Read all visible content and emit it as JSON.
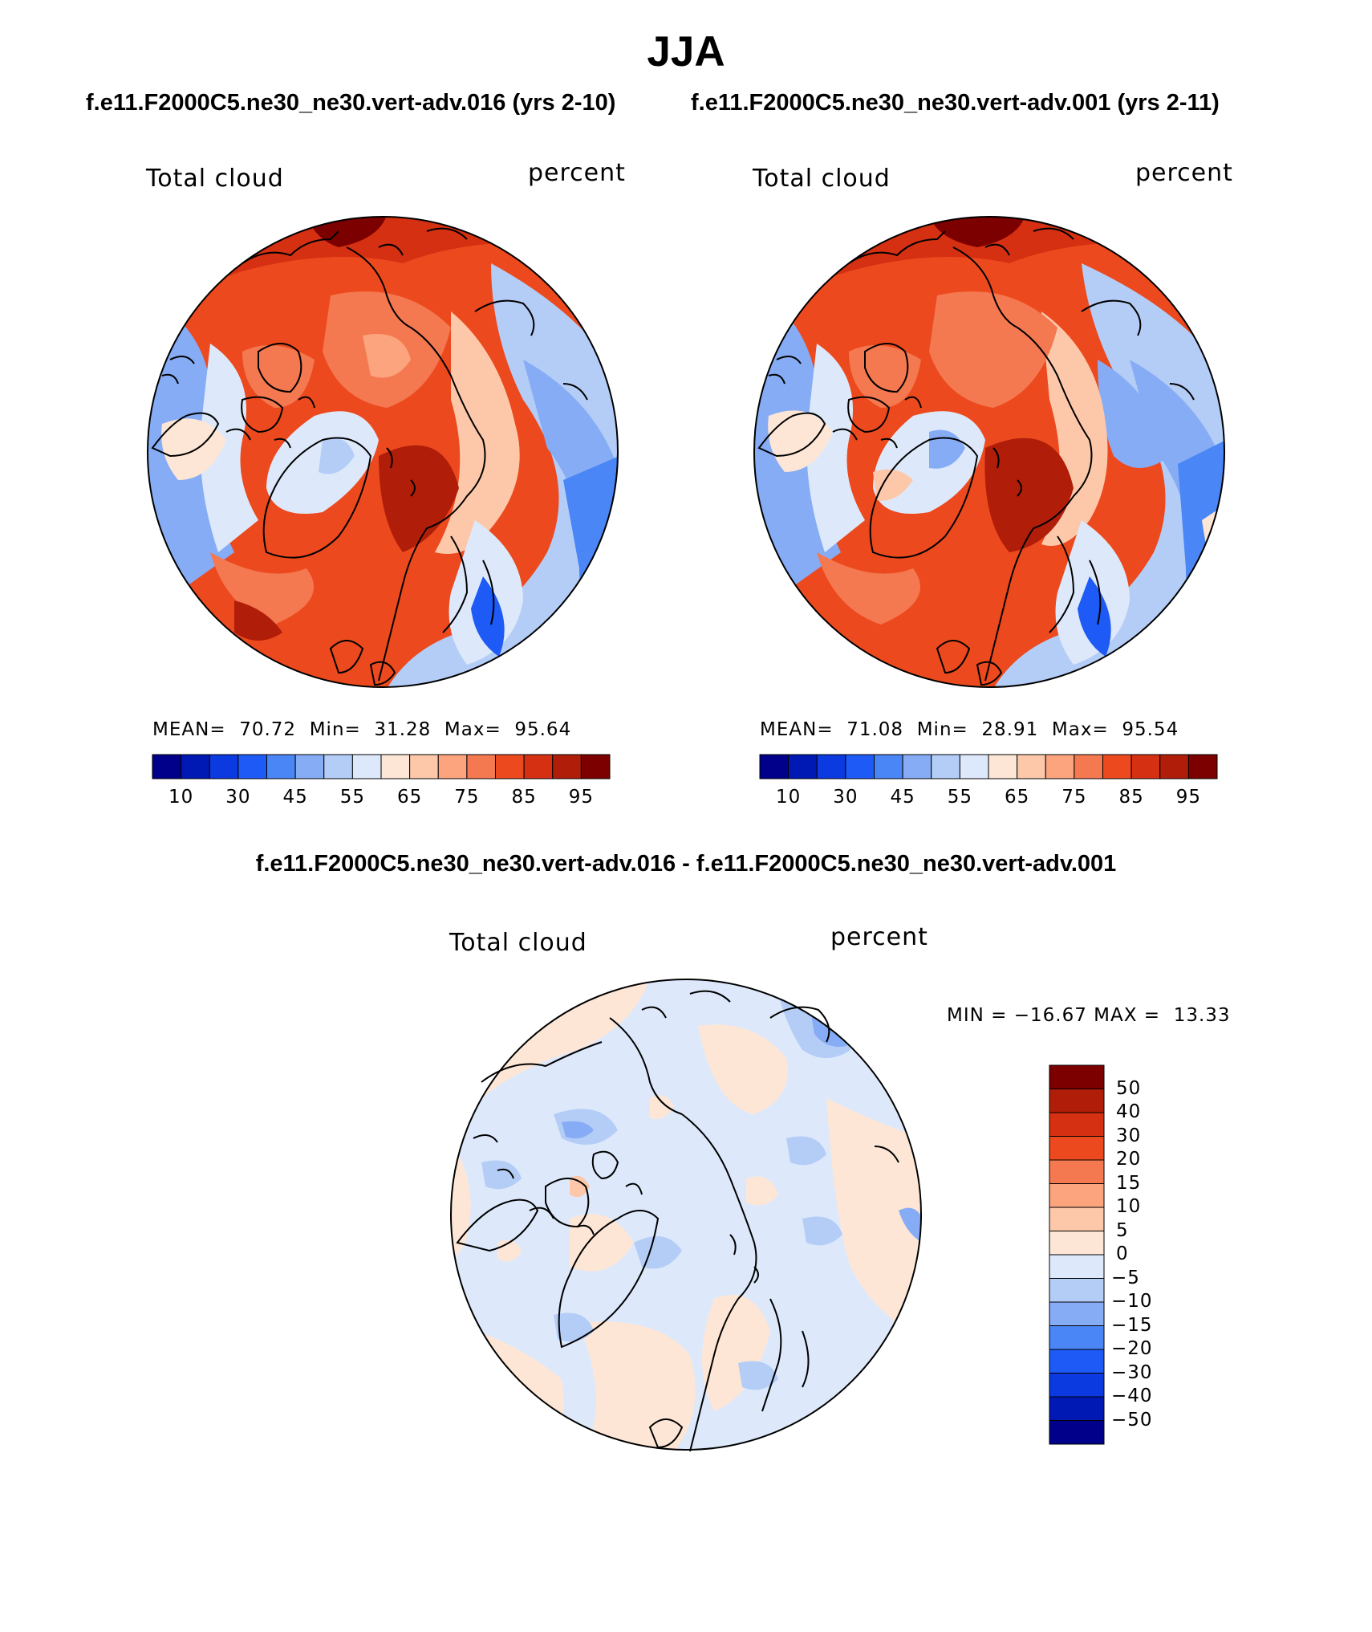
{
  "title": "JJA",
  "run_titles": {
    "left": "f.e11.F2000C5.ne30_ne30.vert-adv.016 (yrs 2-10)",
    "right": "f.e11.F2000C5.ne30_ne30.vert-adv.001 (yrs 2-11)"
  },
  "diff_title": "f.e11.F2000C5.ne30_ne30.vert-adv.016 - f.e11.F2000C5.ne30_ne30.vert-adv.001",
  "panels": [
    {
      "variable": "Total cloud",
      "units": "percent",
      "stats": {
        "mean_label": "MEAN=",
        "mean": "70.72",
        "min_label": "Min=",
        "min": "31.28",
        "max_label": "Max=",
        "max": "95.64"
      }
    },
    {
      "variable": "Total cloud",
      "units": "percent",
      "stats": {
        "mean_label": "MEAN=",
        "mean": "71.08",
        "min_label": "Min=",
        "min": "28.91",
        "max_label": "Max=",
        "max": "95.54"
      }
    },
    {
      "variable": "Total cloud",
      "units": "percent",
      "stats": {
        "text": "MIN = −16.67 MAX =  13.33"
      }
    }
  ],
  "colorbar_main": {
    "tick_labels": [
      "10",
      "30",
      "45",
      "55",
      "65",
      "75",
      "85",
      "95"
    ],
    "colors": [
      "#00008a",
      "#0019b4",
      "#0a3ae0",
      "#1e5af5",
      "#4a86f5",
      "#86acf5",
      "#b4cdf7",
      "#dde9fb",
      "#fde6d6",
      "#fdc8aa",
      "#fca47e",
      "#f47850",
      "#ec4a1e",
      "#d63012",
      "#b01e0a",
      "#7d0000"
    ]
  },
  "colorbar_diff": {
    "tick_labels": [
      "50",
      "40",
      "30",
      "20",
      "15",
      "10",
      "5",
      "0",
      "−5",
      "−10",
      "−15",
      "−20",
      "−30",
      "−40",
      "−50"
    ],
    "colors": [
      "#7d0000",
      "#b01e0a",
      "#d63012",
      "#ec4a1e",
      "#f47850",
      "#fca47e",
      "#fdc8aa",
      "#fde6d6",
      "#dde9fb",
      "#b4cdf7",
      "#86acf5",
      "#4a86f5",
      "#1e5af5",
      "#0a3ae0",
      "#0019b4",
      "#00008a"
    ]
  },
  "map_fill": {
    "panel1_base": "#ec4a1e",
    "panel2_base": "#ec4a1e",
    "diff_base": "#dde9fb",
    "coastline": "#000000"
  }
}
